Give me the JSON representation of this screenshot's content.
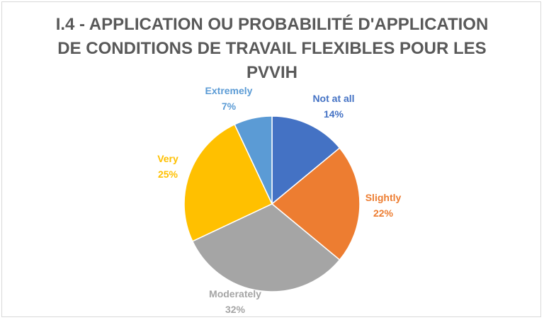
{
  "chart_data": {
    "type": "pie",
    "title_lines": [
      "I.4 - APPLICATION OU PROBABILITÉ D'APPLICATION",
      "DE CONDITIONS DE TRAVAIL FLEXIBLES POUR LES",
      "PVVIH"
    ],
    "slices": [
      {
        "label": "Not at all",
        "value": 14,
        "value_text": "14%",
        "color": "#4472c4"
      },
      {
        "label": "Slightly",
        "value": 22,
        "value_text": "22%",
        "color": "#ed7d31"
      },
      {
        "label": "Moderately",
        "value": 32,
        "value_text": "32%",
        "color": "#a5a5a5"
      },
      {
        "label": "Very",
        "value": 25,
        "value_text": "25%",
        "color": "#ffc000"
      },
      {
        "label": "Extremely",
        "value": 7,
        "value_text": "7%",
        "color": "#5b9bd5"
      }
    ],
    "start": "12 o'clock",
    "direction": "clockwise"
  }
}
